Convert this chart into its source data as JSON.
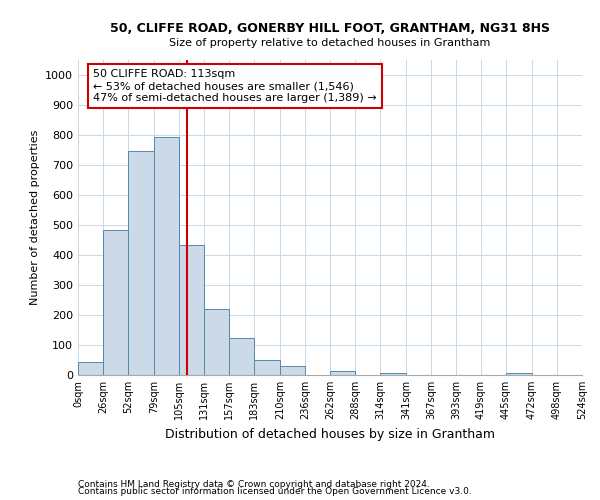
{
  "title1": "50, CLIFFE ROAD, GONERBY HILL FOOT, GRANTHAM, NG31 8HS",
  "title2": "Size of property relative to detached houses in Grantham",
  "xlabel": "Distribution of detached houses by size in Grantham",
  "ylabel": "Number of detached properties",
  "footnote1": "Contains HM Land Registry data © Crown copyright and database right 2024.",
  "footnote2": "Contains public sector information licensed under the Open Government Licence v3.0.",
  "annotation_title": "50 CLIFFE ROAD: 113sqm",
  "annotation_line1": "← 53% of detached houses are smaller (1,546)",
  "annotation_line2": "47% of semi-detached houses are larger (1,389) →",
  "property_size": 113,
  "bar_color": "#ccd9e8",
  "bar_edge_color": "#5588aa",
  "vline_color": "#cc0000",
  "annotation_box_color": "#cc0000",
  "bins": [
    0,
    26,
    52,
    79,
    105,
    131,
    157,
    183,
    210,
    236,
    262,
    288,
    314,
    341,
    367,
    393,
    419,
    445,
    472,
    498,
    524
  ],
  "bin_labels": [
    "0sqm",
    "26sqm",
    "52sqm",
    "79sqm",
    "105sqm",
    "131sqm",
    "157sqm",
    "183sqm",
    "210sqm",
    "236sqm",
    "262sqm",
    "288sqm",
    "314sqm",
    "341sqm",
    "367sqm",
    "393sqm",
    "419sqm",
    "445sqm",
    "472sqm",
    "498sqm",
    "524sqm"
  ],
  "counts": [
    42,
    485,
    748,
    795,
    435,
    220,
    125,
    50,
    30,
    0,
    15,
    0,
    8,
    0,
    0,
    0,
    0,
    8,
    0,
    0,
    0
  ],
  "ylim": [
    0,
    1050
  ],
  "yticks": [
    0,
    100,
    200,
    300,
    400,
    500,
    600,
    700,
    800,
    900,
    1000
  ],
  "background_color": "#ffffff",
  "grid_color": "#c8d8e8"
}
